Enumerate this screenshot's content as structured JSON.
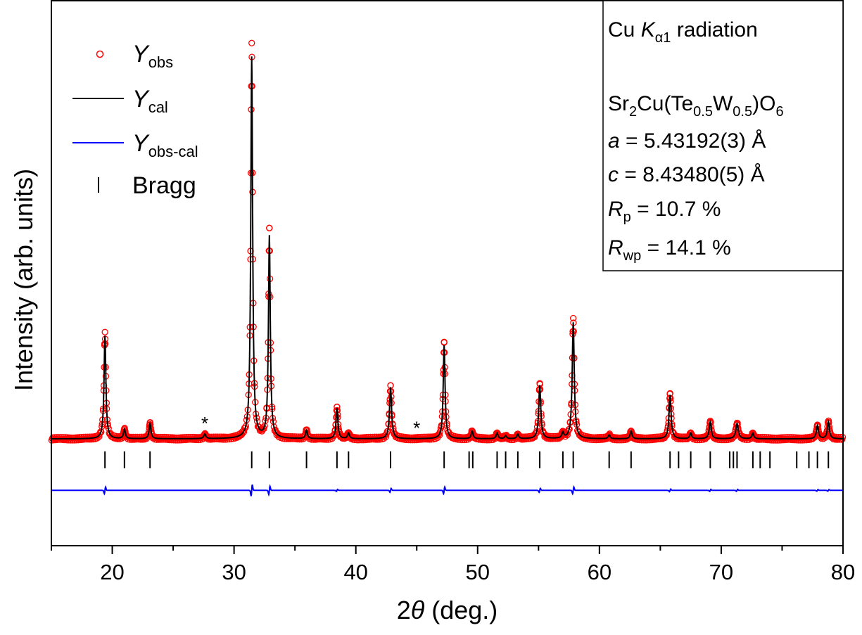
{
  "chart_data": {
    "type": "scatter",
    "xlabel_prefix": "2",
    "xlabel_theta": "θ",
    "xlabel_suffix": " (deg.)",
    "ylabel": "Intensity (arb. units)",
    "xlim": [
      15,
      80
    ],
    "xticks": [
      20,
      30,
      40,
      50,
      60,
      70,
      80
    ],
    "ylim": [
      -0.28,
      1.15
    ],
    "grid": false,
    "legend_position": "top-left",
    "legend": [
      {
        "main": "Y",
        "sub": "obs",
        "marker": "circle",
        "color": "#ff0000"
      },
      {
        "main": "Y",
        "sub": "cal",
        "marker": "line",
        "color": "#000000"
      },
      {
        "main": "Y",
        "sub": "obs-cal",
        "marker": "line",
        "color": "#0000ff"
      },
      {
        "main": "Bragg",
        "sub": "",
        "marker": "tick",
        "color": "#000000"
      }
    ],
    "info": {
      "radiation_prefix": "Cu ",
      "radiation_k": "K",
      "radiation_sub": "α1",
      "radiation_suffix": " radiation",
      "formula": [
        {
          "t": "Sr",
          "sub": false
        },
        {
          "t": "2",
          "sub": true
        },
        {
          "t": "Cu(Te",
          "sub": false
        },
        {
          "t": "0.5",
          "sub": true
        },
        {
          "t": "W",
          "sub": false
        },
        {
          "t": "0.5",
          "sub": true
        },
        {
          "t": ")O",
          "sub": false
        },
        {
          "t": "6",
          "sub": true
        }
      ],
      "a_label": "a",
      "a_value": " = 5.43192(3) Å",
      "c_label": "c",
      "c_value": " = 8.43480(5) Å",
      "rp_label": "R",
      "rp_sub": "p",
      "rp_value": " = 10.7 %",
      "rwp_label": "R",
      "rwp_sub": "wp",
      "rwp_value": " = 14.1 %"
    },
    "baseline": 0.0,
    "peaks": [
      {
        "x": 19.4,
        "h": 0.27,
        "w": 0.09
      },
      {
        "x": 21.0,
        "h": 0.025,
        "w": 0.09
      },
      {
        "x": 23.1,
        "h": 0.04,
        "w": 0.09
      },
      {
        "x": 27.6,
        "h": 0.012,
        "w": 0.1
      },
      {
        "x": 31.45,
        "h": 1.0,
        "w": 0.09
      },
      {
        "x": 32.9,
        "h": 0.53,
        "w": 0.09
      },
      {
        "x": 35.95,
        "h": 0.022,
        "w": 0.09
      },
      {
        "x": 38.45,
        "h": 0.08,
        "w": 0.09
      },
      {
        "x": 39.4,
        "h": 0.015,
        "w": 0.09
      },
      {
        "x": 42.85,
        "h": 0.135,
        "w": 0.1
      },
      {
        "x": 47.25,
        "h": 0.245,
        "w": 0.09
      },
      {
        "x": 49.55,
        "h": 0.02,
        "w": 0.09
      },
      {
        "x": 51.6,
        "h": 0.015,
        "w": 0.09
      },
      {
        "x": 52.3,
        "h": 0.008,
        "w": 0.09
      },
      {
        "x": 53.3,
        "h": 0.012,
        "w": 0.09
      },
      {
        "x": 55.1,
        "h": 0.14,
        "w": 0.1
      },
      {
        "x": 57.0,
        "h": 0.015,
        "w": 0.09
      },
      {
        "x": 57.85,
        "h": 0.305,
        "w": 0.1
      },
      {
        "x": 60.8,
        "h": 0.01,
        "w": 0.09
      },
      {
        "x": 62.6,
        "h": 0.02,
        "w": 0.09
      },
      {
        "x": 65.8,
        "h": 0.115,
        "w": 0.1
      },
      {
        "x": 67.5,
        "h": 0.015,
        "w": 0.09
      },
      {
        "x": 69.1,
        "h": 0.045,
        "w": 0.1
      },
      {
        "x": 71.3,
        "h": 0.04,
        "w": 0.12
      },
      {
        "x": 72.6,
        "h": 0.015,
        "w": 0.09
      },
      {
        "x": 77.9,
        "h": 0.035,
        "w": 0.1
      },
      {
        "x": 78.8,
        "h": 0.045,
        "w": 0.1
      }
    ],
    "impurity_markers": [
      27.6,
      45.0
    ],
    "impurity_symbol": "*",
    "bragg_positions": [
      19.4,
      21.0,
      23.1,
      31.45,
      32.9,
      35.95,
      38.45,
      39.4,
      42.85,
      47.25,
      49.3,
      49.6,
      51.6,
      52.3,
      53.3,
      55.1,
      57.0,
      57.85,
      60.8,
      62.6,
      65.8,
      66.5,
      67.5,
      69.1,
      70.7,
      71.0,
      71.3,
      72.6,
      73.2,
      74.0,
      76.2,
      77.2,
      77.9,
      78.8
    ],
    "bragg_row_y": -0.055,
    "difference_baseline": -0.135,
    "difference_features": [
      {
        "x": 19.4,
        "amp": 0.02
      },
      {
        "x": 31.45,
        "amp": 0.035
      },
      {
        "x": 32.9,
        "amp": 0.025
      },
      {
        "x": 38.45,
        "amp": 0.006
      },
      {
        "x": 42.85,
        "amp": 0.012
      },
      {
        "x": 47.25,
        "amp": 0.02
      },
      {
        "x": 55.1,
        "amp": 0.012
      },
      {
        "x": 57.85,
        "amp": 0.02
      },
      {
        "x": 65.8,
        "amp": 0.008
      },
      {
        "x": 69.1,
        "amp": 0.006
      },
      {
        "x": 71.3,
        "amp": 0.006
      },
      {
        "x": 77.9,
        "amp": 0.005
      },
      {
        "x": 78.8,
        "amp": 0.005
      }
    ],
    "colors": {
      "obs": "#ff0000",
      "cal": "#000000",
      "diff": "#0000ff",
      "bragg": "#000000",
      "axis": "#000000"
    }
  }
}
